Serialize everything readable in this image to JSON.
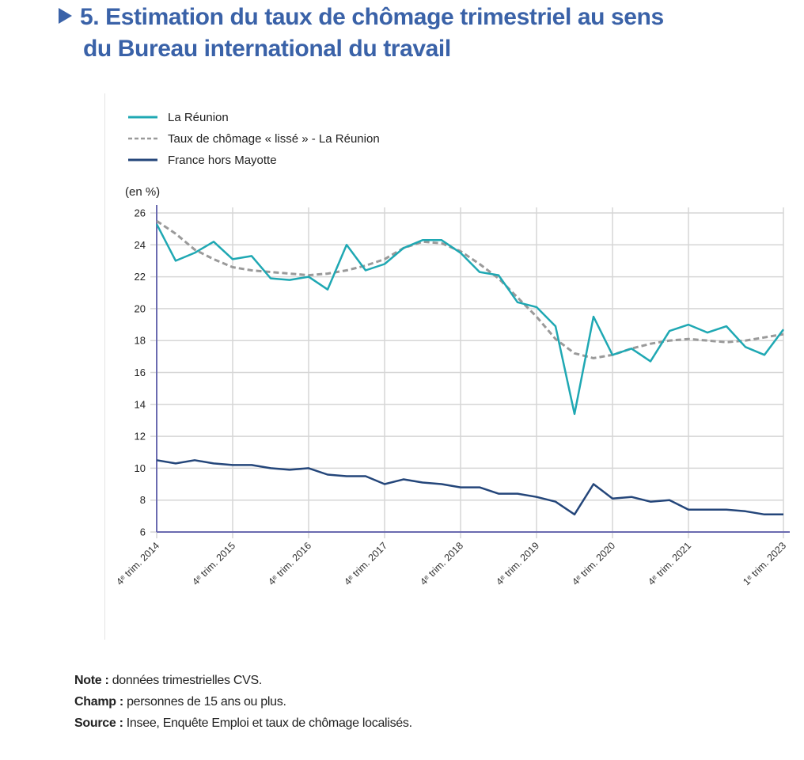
{
  "header": {
    "title_line1": "5. Estimation du taux de chômage trimestriel au sens",
    "title_line2": "du Bureau international du travail",
    "bullet_icon": "triangle-right-icon"
  },
  "footnotes": [
    {
      "label": "Note :",
      "text": "données trimestrielles CVS."
    },
    {
      "label": "Champ :",
      "text": "personnes de 15 ans ou plus."
    },
    {
      "label": "Source :",
      "text": "Insee, Enquête Emploi et taux de chômage localisés."
    }
  ],
  "colors": {
    "title": "#3a62a8",
    "reunion": "#1fa8b3",
    "smoothed": "#9a9a9a",
    "france": "#24467a",
    "axis": "#6b6bb0",
    "grid": "#d6d6d6"
  },
  "chart_data": {
    "type": "line",
    "title": "5. Estimation du taux de chômage trimestriel au sens du Bureau international du travail",
    "ylabel": "(en %)",
    "xlabel": "",
    "ylim": [
      6,
      26
    ],
    "yticks": [
      6,
      8,
      10,
      12,
      14,
      16,
      18,
      20,
      22,
      24,
      26
    ],
    "grid": true,
    "legend_position": "top-left",
    "x_count": 34,
    "xtick_labels": [
      {
        "index": 0,
        "label": "4ᵉ trim. 2014"
      },
      {
        "index": 4,
        "label": "4ᵉ trim. 2015"
      },
      {
        "index": 8,
        "label": "4ᵉ trim. 2016"
      },
      {
        "index": 12,
        "label": "4ᵉ trim. 2017"
      },
      {
        "index": 16,
        "label": "4ᵉ trim. 2018"
      },
      {
        "index": 20,
        "label": "4ᵉ trim. 2019"
      },
      {
        "index": 24,
        "label": "4ᵉ trim. 2020"
      },
      {
        "index": 28,
        "label": "4ᵉ trim. 2021"
      },
      {
        "index": 33,
        "label": "1ᵉ trim. 2023"
      }
    ],
    "series": [
      {
        "name": "La Réunion",
        "style": "solid",
        "color_key": "reunion",
        "values": [
          25.3,
          23.0,
          23.5,
          24.2,
          23.1,
          23.3,
          21.9,
          21.8,
          22.0,
          21.2,
          24.0,
          22.4,
          22.8,
          23.8,
          24.3,
          24.3,
          23.5,
          22.3,
          22.1,
          20.4,
          20.1,
          18.9,
          13.4,
          19.5,
          17.1,
          17.5,
          16.7,
          18.6,
          19.0,
          18.5,
          18.9,
          17.6,
          17.1,
          18.7
        ]
      },
      {
        "name": "Taux de chômage « lissé » - La Réunion",
        "style": "dashed",
        "color_key": "smoothed",
        "values": [
          25.5,
          24.7,
          23.7,
          23.1,
          22.6,
          22.4,
          22.3,
          22.2,
          22.1,
          22.2,
          22.4,
          22.7,
          23.1,
          23.8,
          24.2,
          24.1,
          23.6,
          22.8,
          21.9,
          20.7,
          19.5,
          18.1,
          17.2,
          16.9,
          17.1,
          17.5,
          17.8,
          18.0,
          18.1,
          18.0,
          17.9,
          18.0,
          18.2,
          18.4
        ]
      },
      {
        "name": "France hors Mayotte",
        "style": "solid",
        "color_key": "france",
        "values": [
          10.5,
          10.3,
          10.5,
          10.3,
          10.2,
          10.2,
          10.0,
          9.9,
          10.0,
          9.6,
          9.5,
          9.5,
          9.0,
          9.3,
          9.1,
          9.0,
          8.8,
          8.8,
          8.4,
          8.4,
          8.2,
          7.9,
          7.1,
          9.0,
          8.1,
          8.2,
          7.9,
          8.0,
          7.4,
          7.4,
          7.4,
          7.3,
          7.1,
          7.1
        ]
      }
    ]
  }
}
